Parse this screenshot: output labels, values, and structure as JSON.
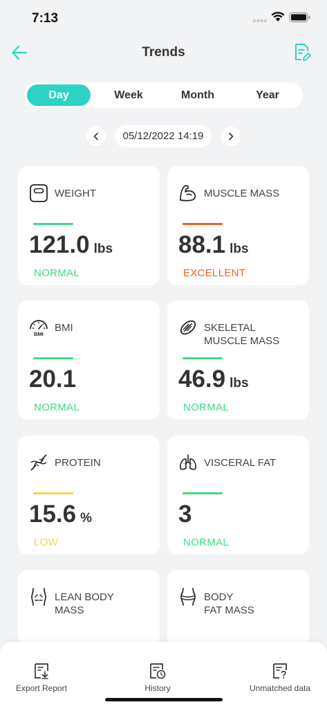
{
  "status": {
    "time": "7:13"
  },
  "header": {
    "title": "Trends"
  },
  "segments": {
    "day": "Day",
    "week": "Week",
    "month": "Month",
    "year": "Year",
    "active": "Day"
  },
  "date": {
    "value": "05/12/2022 14:19"
  },
  "colors": {
    "accent": "#2ed3c5",
    "normal": "#3ddc84",
    "excellent": "#f2631c",
    "low": "#f5d547"
  },
  "cards": {
    "weight": {
      "label": "WEIGHT",
      "value": "121.0",
      "unit": "lbs",
      "status": "NORMAL"
    },
    "muscle": {
      "label": "MUSCLE MASS",
      "value": "88.1",
      "unit": "lbs",
      "status": "EXCELLENT"
    },
    "bmi": {
      "label": "BMI",
      "value": "20.1",
      "status": "NORMAL"
    },
    "skeletal": {
      "label1": "SKELETAL",
      "label2": "MUSCLE MASS",
      "value": "46.9",
      "unit": "lbs",
      "status": "NORMAL"
    },
    "protein": {
      "label": "PROTEIN",
      "value": "15.6",
      "unit": "%",
      "status": "LOW"
    },
    "visceral": {
      "label": "VISCERAL FAT",
      "value": "3",
      "status": "NORMAL"
    },
    "lean": {
      "label1": "LEAN BODY",
      "label2": "MASS"
    },
    "bodyfat": {
      "label1": "BODY",
      "label2": "FAT MASS"
    },
    "bmi_icon_text": "BMI"
  },
  "bottom": {
    "export": "Export Report",
    "history": "History",
    "unmatched": "Unmatched data"
  }
}
